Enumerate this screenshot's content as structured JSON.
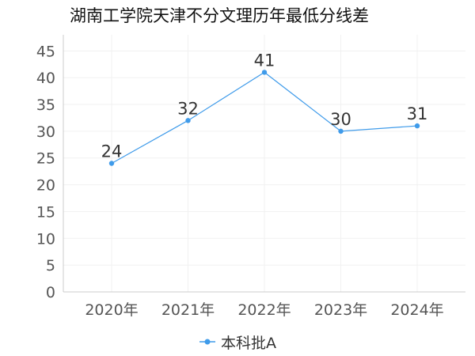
{
  "title": "湖南工学院天津不分文理历年最低分线差",
  "chart_data": {
    "type": "line",
    "categories": [
      "2020年",
      "2021年",
      "2022年",
      "2023年",
      "2024年"
    ],
    "series": [
      {
        "name": "本科批A",
        "values": [
          24,
          32,
          41,
          30,
          31
        ],
        "color": "#3f9bea"
      }
    ],
    "yticks": [
      0,
      5,
      10,
      15,
      20,
      25,
      30,
      35,
      40,
      45
    ],
    "ylim": [
      0,
      48
    ],
    "grid": true,
    "legend_position": "bottom"
  }
}
